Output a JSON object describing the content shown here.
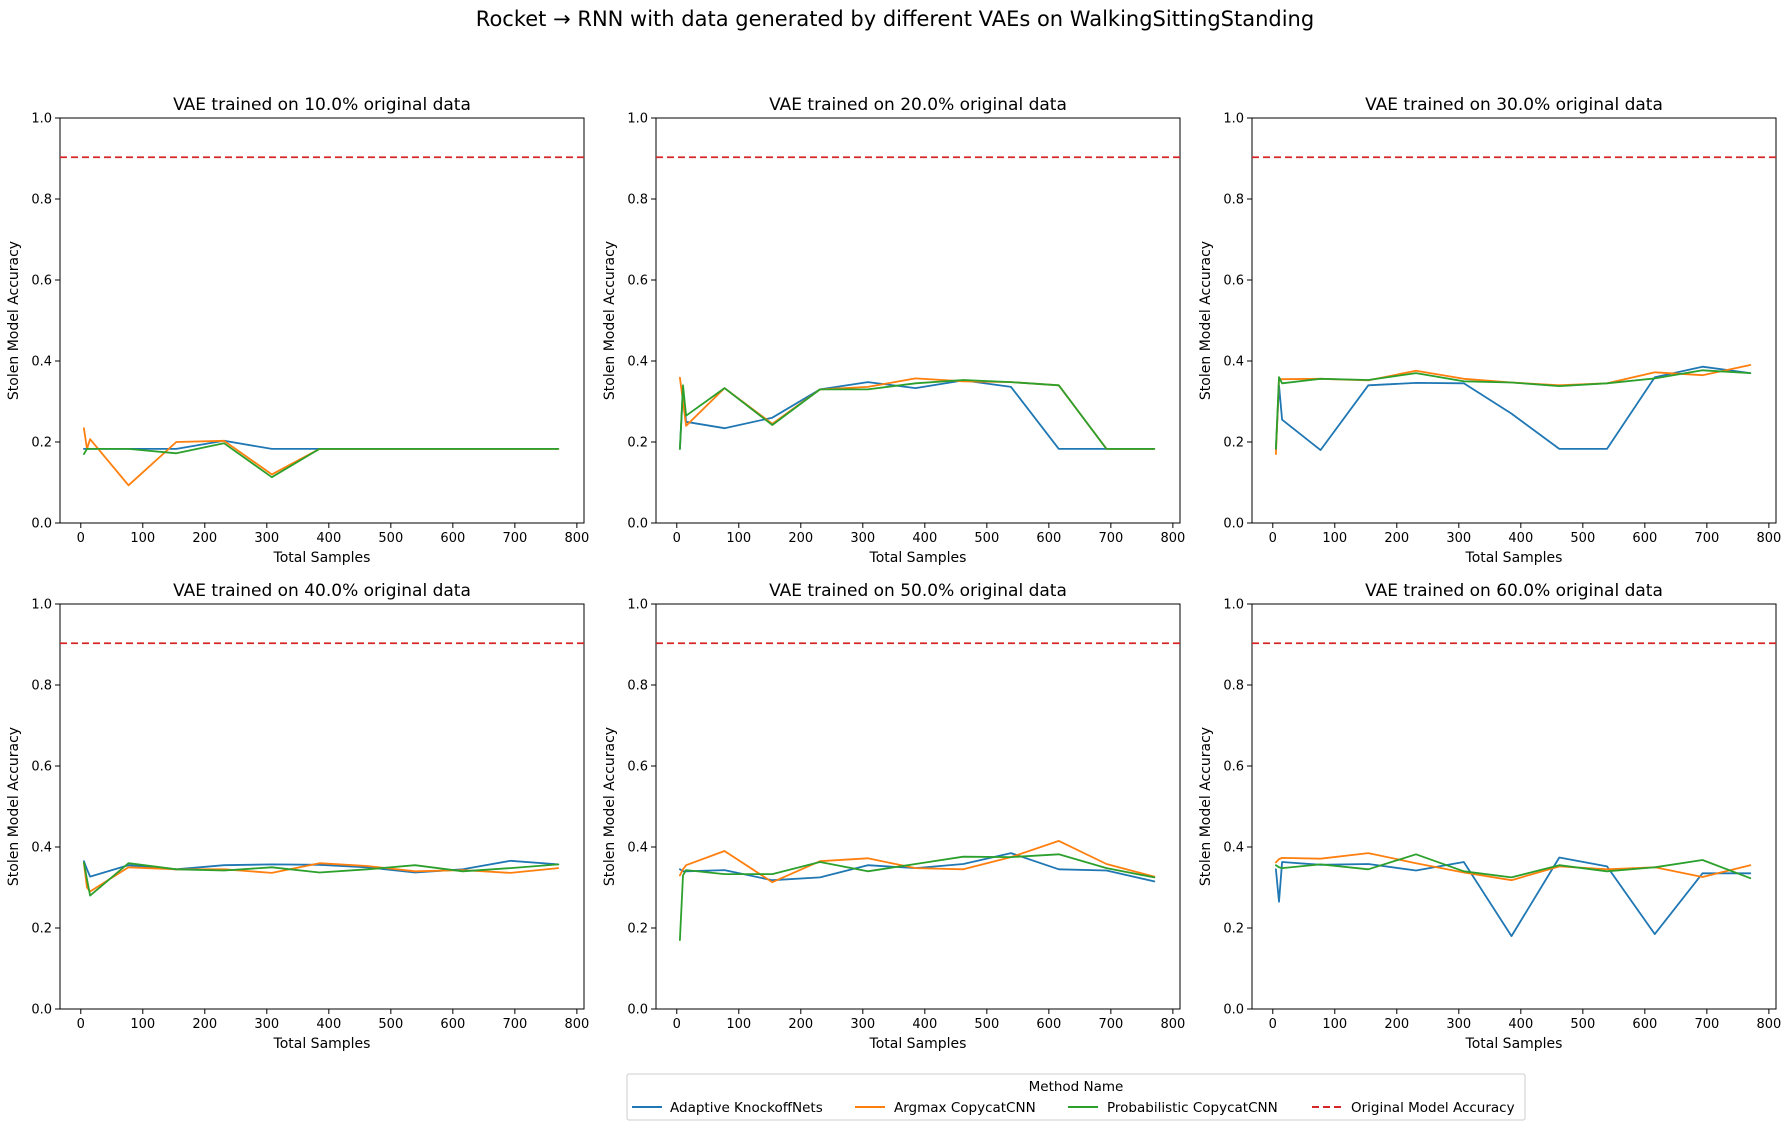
{
  "figure": {
    "title": "Rocket → RNN with data generated by different VAEs on WalkingSittingStanding"
  },
  "legend": {
    "title": "Method Name",
    "entries": [
      {
        "label": "Adaptive KnockoffNets",
        "color": "#1f77b4",
        "style": "solid"
      },
      {
        "label": "Argmax CopycatCNN",
        "color": "#ff7f0e",
        "style": "solid"
      },
      {
        "label": "Probabilistic CopycatCNN",
        "color": "#2ca02c",
        "style": "solid"
      },
      {
        "label": "Original Model Accuracy",
        "color": "#d62728",
        "style": "dashed"
      }
    ]
  },
  "chart_data": [
    {
      "type": "line",
      "title": "VAE trained on 10.0% original data",
      "xlabel": "Total Samples",
      "ylabel": "Stolen Model Accuracy",
      "xlim": [
        -33.5,
        811.5
      ],
      "ylim": [
        0,
        1.0
      ],
      "xticks": [
        0,
        100,
        200,
        300,
        400,
        500,
        600,
        700,
        800
      ],
      "yticks": [
        0.0,
        0.2,
        0.4,
        0.6,
        0.8,
        1.0
      ],
      "reference_line": {
        "name": "Original Model Accuracy",
        "y": 0.903
      },
      "series": [
        {
          "name": "Adaptive KnockoffNets",
          "x": [
            5,
            10,
            15,
            77,
            154,
            231,
            308,
            385,
            462,
            539,
            616,
            693,
            770
          ],
          "y": [
            0.183,
            0.183,
            0.183,
            0.183,
            0.183,
            0.203,
            0.183,
            0.183,
            0.183,
            0.183,
            0.183,
            0.183,
            0.183
          ]
        },
        {
          "name": "Argmax CopycatCNN",
          "x": [
            5,
            10,
            15,
            77,
            154,
            231,
            308,
            385,
            462,
            539,
            616,
            693,
            770
          ],
          "y": [
            0.234,
            0.183,
            0.207,
            0.093,
            0.2,
            0.203,
            0.12,
            0.183,
            0.183,
            0.183,
            0.183,
            0.183,
            0.183
          ]
        },
        {
          "name": "Probabilistic CopycatCNN",
          "x": [
            5,
            10,
            15,
            77,
            154,
            231,
            308,
            385,
            462,
            539,
            616,
            693,
            770
          ],
          "y": [
            0.17,
            0.183,
            0.183,
            0.183,
            0.172,
            0.197,
            0.113,
            0.183,
            0.183,
            0.183,
            0.183,
            0.183,
            0.183
          ]
        }
      ]
    },
    {
      "type": "line",
      "title": "VAE trained on 20.0% original data",
      "xlabel": "Total Samples",
      "ylabel": "Stolen Model Accuracy",
      "xlim": [
        -33.5,
        811.5
      ],
      "ylim": [
        0,
        1.0
      ],
      "xticks": [
        0,
        100,
        200,
        300,
        400,
        500,
        600,
        700,
        800
      ],
      "yticks": [
        0.0,
        0.2,
        0.4,
        0.6,
        0.8,
        1.0
      ],
      "reference_line": {
        "name": "Original Model Accuracy",
        "y": 0.903
      },
      "series": [
        {
          "name": "Adaptive KnockoffNets",
          "x": [
            5,
            10,
            15,
            77,
            154,
            231,
            308,
            385,
            462,
            539,
            616,
            693,
            770
          ],
          "y": [
            0.183,
            0.33,
            0.25,
            0.234,
            0.26,
            0.33,
            0.348,
            0.333,
            0.352,
            0.336,
            0.183,
            0.183,
            0.183
          ]
        },
        {
          "name": "Argmax CopycatCNN",
          "x": [
            5,
            10,
            15,
            77,
            154,
            231,
            308,
            385,
            462,
            539,
            616,
            693,
            770
          ],
          "y": [
            0.359,
            0.3,
            0.24,
            0.333,
            0.245,
            0.33,
            0.336,
            0.357,
            0.35,
            0.348,
            0.34,
            0.183,
            0.183
          ]
        },
        {
          "name": "Probabilistic CopycatCNN",
          "x": [
            5,
            10,
            15,
            77,
            154,
            231,
            308,
            385,
            462,
            539,
            616,
            693,
            770
          ],
          "y": [
            0.183,
            0.34,
            0.265,
            0.333,
            0.242,
            0.33,
            0.33,
            0.345,
            0.353,
            0.348,
            0.34,
            0.183,
            0.183
          ]
        }
      ]
    },
    {
      "type": "line",
      "title": "VAE trained on 30.0% original data",
      "xlabel": "Total Samples",
      "ylabel": "Stolen Model Accuracy",
      "xlim": [
        -33.5,
        811.5
      ],
      "ylim": [
        0,
        1.0
      ],
      "xticks": [
        0,
        100,
        200,
        300,
        400,
        500,
        600,
        700,
        800
      ],
      "yticks": [
        0.0,
        0.2,
        0.4,
        0.6,
        0.8,
        1.0
      ],
      "reference_line": {
        "name": "Original Model Accuracy",
        "y": 0.903
      },
      "series": [
        {
          "name": "Adaptive KnockoffNets",
          "x": [
            5,
            10,
            15,
            77,
            154,
            231,
            308,
            385,
            462,
            539,
            616,
            693,
            770
          ],
          "y": [
            0.183,
            0.34,
            0.255,
            0.18,
            0.34,
            0.346,
            0.345,
            0.27,
            0.183,
            0.183,
            0.36,
            0.386,
            0.37
          ]
        },
        {
          "name": "Argmax CopycatCNN",
          "x": [
            5,
            10,
            15,
            77,
            154,
            231,
            308,
            385,
            462,
            539,
            616,
            693,
            770
          ],
          "y": [
            0.17,
            0.355,
            0.355,
            0.356,
            0.352,
            0.376,
            0.356,
            0.347,
            0.34,
            0.345,
            0.372,
            0.365,
            0.39
          ]
        },
        {
          "name": "Probabilistic CopycatCNN",
          "x": [
            5,
            10,
            15,
            77,
            154,
            231,
            308,
            385,
            462,
            539,
            616,
            693,
            770
          ],
          "y": [
            0.183,
            0.36,
            0.345,
            0.356,
            0.353,
            0.37,
            0.35,
            0.347,
            0.338,
            0.345,
            0.357,
            0.377,
            0.37
          ]
        }
      ]
    },
    {
      "type": "line",
      "title": "VAE trained on 40.0% original data",
      "xlabel": "Total Samples",
      "ylabel": "Stolen Model Accuracy",
      "xlim": [
        -33.5,
        811.5
      ],
      "ylim": [
        0,
        1.0
      ],
      "xticks": [
        0,
        100,
        200,
        300,
        400,
        500,
        600,
        700,
        800
      ],
      "yticks": [
        0.0,
        0.2,
        0.4,
        0.6,
        0.8,
        1.0
      ],
      "reference_line": {
        "name": "Original Model Accuracy",
        "y": 0.903
      },
      "series": [
        {
          "name": "Adaptive KnockoffNets",
          "x": [
            5,
            10,
            15,
            77,
            154,
            231,
            308,
            385,
            462,
            539,
            616,
            693,
            770
          ],
          "y": [
            0.365,
            0.345,
            0.327,
            0.355,
            0.345,
            0.355,
            0.357,
            0.356,
            0.35,
            0.337,
            0.345,
            0.366,
            0.357
          ]
        },
        {
          "name": "Argmax CopycatCNN",
          "x": [
            5,
            10,
            15,
            77,
            154,
            231,
            308,
            385,
            462,
            539,
            616,
            693,
            770
          ],
          "y": [
            0.36,
            0.3,
            0.29,
            0.35,
            0.345,
            0.345,
            0.336,
            0.36,
            0.353,
            0.34,
            0.343,
            0.336,
            0.348
          ]
        },
        {
          "name": "Probabilistic CopycatCNN",
          "x": [
            5,
            10,
            15,
            77,
            154,
            231,
            308,
            385,
            462,
            539,
            616,
            693,
            770
          ],
          "y": [
            0.362,
            0.32,
            0.28,
            0.36,
            0.345,
            0.342,
            0.35,
            0.337,
            0.345,
            0.355,
            0.34,
            0.348,
            0.357
          ]
        }
      ]
    },
    {
      "type": "line",
      "title": "VAE trained on 50.0% original data",
      "xlabel": "Total Samples",
      "ylabel": "Stolen Model Accuracy",
      "xlim": [
        -33.5,
        811.5
      ],
      "ylim": [
        0,
        1.0
      ],
      "xticks": [
        0,
        100,
        200,
        300,
        400,
        500,
        600,
        700,
        800
      ],
      "yticks": [
        0.0,
        0.2,
        0.4,
        0.6,
        0.8,
        1.0
      ],
      "reference_line": {
        "name": "Original Model Accuracy",
        "y": 0.903
      },
      "series": [
        {
          "name": "Adaptive KnockoffNets",
          "x": [
            5,
            10,
            15,
            77,
            154,
            231,
            308,
            385,
            462,
            539,
            616,
            693,
            770
          ],
          "y": [
            0.345,
            0.34,
            0.34,
            0.343,
            0.318,
            0.325,
            0.355,
            0.348,
            0.358,
            0.385,
            0.345,
            0.342,
            0.315
          ]
        },
        {
          "name": "Argmax CopycatCNN",
          "x": [
            5,
            10,
            15,
            77,
            154,
            231,
            308,
            385,
            462,
            539,
            616,
            693,
            770
          ],
          "y": [
            0.33,
            0.345,
            0.355,
            0.39,
            0.313,
            0.365,
            0.372,
            0.348,
            0.345,
            0.375,
            0.415,
            0.358,
            0.327
          ]
        },
        {
          "name": "Probabilistic CopycatCNN",
          "x": [
            5,
            10,
            15,
            77,
            154,
            231,
            308,
            385,
            462,
            539,
            616,
            693,
            770
          ],
          "y": [
            0.17,
            0.33,
            0.343,
            0.333,
            0.333,
            0.363,
            0.34,
            0.358,
            0.376,
            0.375,
            0.382,
            0.348,
            0.325
          ]
        }
      ]
    },
    {
      "type": "line",
      "title": "VAE trained on 60.0% original data",
      "xlabel": "Total Samples",
      "ylabel": "Stolen Model Accuracy",
      "xlim": [
        -33.5,
        811.5
      ],
      "ylim": [
        0,
        1.0
      ],
      "xticks": [
        0,
        100,
        200,
        300,
        400,
        500,
        600,
        700,
        800
      ],
      "yticks": [
        0.0,
        0.2,
        0.4,
        0.6,
        0.8,
        1.0
      ],
      "reference_line": {
        "name": "Original Model Accuracy",
        "y": 0.903
      },
      "series": [
        {
          "name": "Adaptive KnockoffNets",
          "x": [
            5,
            10,
            15,
            77,
            154,
            231,
            308,
            385,
            462,
            539,
            616,
            693,
            770
          ],
          "y": [
            0.345,
            0.265,
            0.363,
            0.356,
            0.358,
            0.342,
            0.363,
            0.18,
            0.374,
            0.352,
            0.185,
            0.335,
            0.335
          ]
        },
        {
          "name": "Argmax CopycatCNN",
          "x": [
            5,
            10,
            15,
            77,
            154,
            231,
            308,
            385,
            462,
            539,
            616,
            693,
            770
          ],
          "y": [
            0.362,
            0.37,
            0.373,
            0.371,
            0.385,
            0.36,
            0.337,
            0.318,
            0.352,
            0.345,
            0.35,
            0.326,
            0.355
          ]
        },
        {
          "name": "Probabilistic CopycatCNN",
          "x": [
            5,
            10,
            15,
            77,
            154,
            231,
            308,
            385,
            462,
            539,
            616,
            693,
            770
          ],
          "y": [
            0.355,
            0.35,
            0.348,
            0.357,
            0.345,
            0.382,
            0.34,
            0.325,
            0.355,
            0.34,
            0.35,
            0.368,
            0.323
          ]
        }
      ]
    }
  ]
}
